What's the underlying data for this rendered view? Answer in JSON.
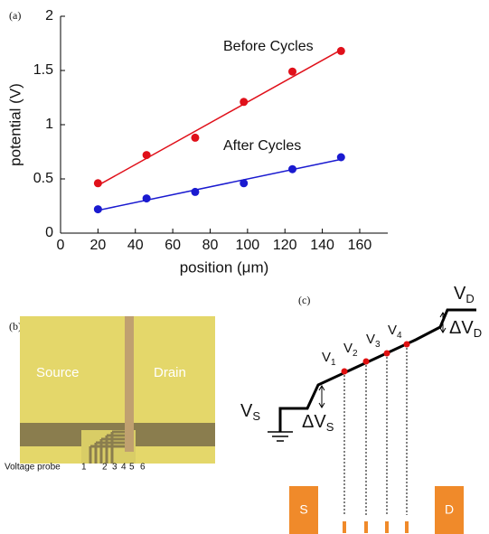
{
  "chart_data": {
    "type": "scatter",
    "panel_label": "(a)",
    "x_label": "position (μm)",
    "y_label": "potential (V)",
    "xlim": [
      0,
      175
    ],
    "xticks": [
      0,
      20,
      40,
      60,
      80,
      100,
      120,
      140,
      160
    ],
    "ylim": [
      0,
      2
    ],
    "yticks": [
      0,
      0.5,
      1,
      1.5,
      2
    ],
    "series": [
      {
        "name": "Before Cycles",
        "color": "#e0101a",
        "x": [
          20,
          46,
          72,
          98,
          124,
          150
        ],
        "values": [
          0.46,
          0.72,
          0.88,
          1.21,
          1.49,
          1.68
        ],
        "fit_x": [
          20,
          150
        ],
        "fit_values": [
          0.44,
          1.69
        ]
      },
      {
        "name": "After Cycles",
        "color": "#1a1ad0",
        "x": [
          20,
          46,
          72,
          98,
          124,
          150
        ],
        "values": [
          0.22,
          0.32,
          0.38,
          0.46,
          0.59,
          0.7
        ],
        "fit_x": [
          20,
          150
        ],
        "fit_values": [
          0.21,
          0.68
        ]
      }
    ]
  },
  "photo": {
    "panel_label": "(b)",
    "source": "Source",
    "drain": "Drain",
    "probe_label": "Voltage probe",
    "probe_numbers": [
      "1",
      "2",
      "3",
      "4",
      "5",
      "6"
    ]
  },
  "diagram": {
    "panel_label": "(c)",
    "source_voltage": {
      "symbol": "V",
      "subscript": "S"
    },
    "source_drop": {
      "symbol": "ΔV",
      "subscript": "S"
    },
    "drain_voltage": {
      "symbol": "V",
      "subscript": "D"
    },
    "drain_drop": {
      "symbol": "ΔV",
      "subscript": "D"
    },
    "probe_voltages": [
      {
        "symbol": "V",
        "subscript": "1"
      },
      {
        "symbol": "V",
        "subscript": "2"
      },
      {
        "symbol": "V",
        "subscript": "3"
      },
      {
        "symbol": "V",
        "subscript": "4"
      }
    ],
    "source_box": "S",
    "drain_box": "D"
  }
}
